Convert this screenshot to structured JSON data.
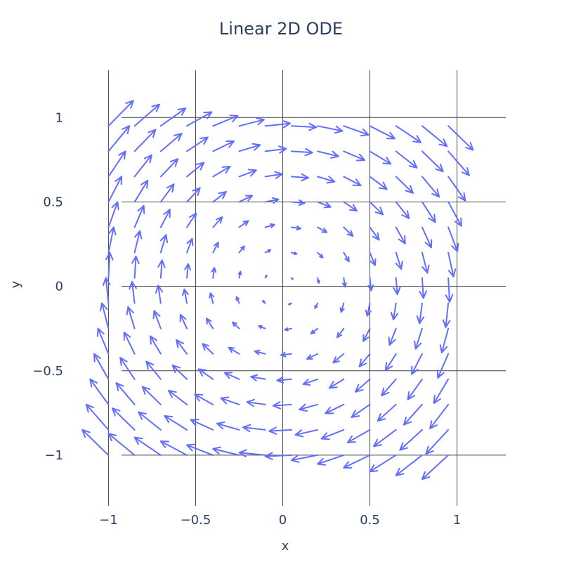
{
  "chart_data": {
    "type": "quiver",
    "title": "Linear 2D ODE",
    "xlabel": "x",
    "ylabel": "y",
    "x_range": [
      -1.3,
      1.28
    ],
    "y_range": [
      -1.3,
      1.28
    ],
    "grid": true,
    "x_ticks": [
      -1,
      -0.5,
      0,
      0.5,
      1
    ],
    "x_tick_labels": [
      "−1",
      "−0.5",
      "0",
      "0.5",
      "1"
    ],
    "y_ticks": [
      -1,
      -0.5,
      0,
      0.5,
      1
    ],
    "y_tick_labels": [
      "−1",
      "−0.5",
      "0",
      "0.5",
      "1"
    ],
    "field": {
      "x_start": -1,
      "x_end": 0.95,
      "y_start": -1,
      "y_end": 0.95,
      "steps": 14,
      "matrix": [
        [
          0,
          1
        ],
        [
          -1,
          0
        ]
      ],
      "arrow_scale": 0.15
    },
    "arrow_color": "#636efa"
  }
}
